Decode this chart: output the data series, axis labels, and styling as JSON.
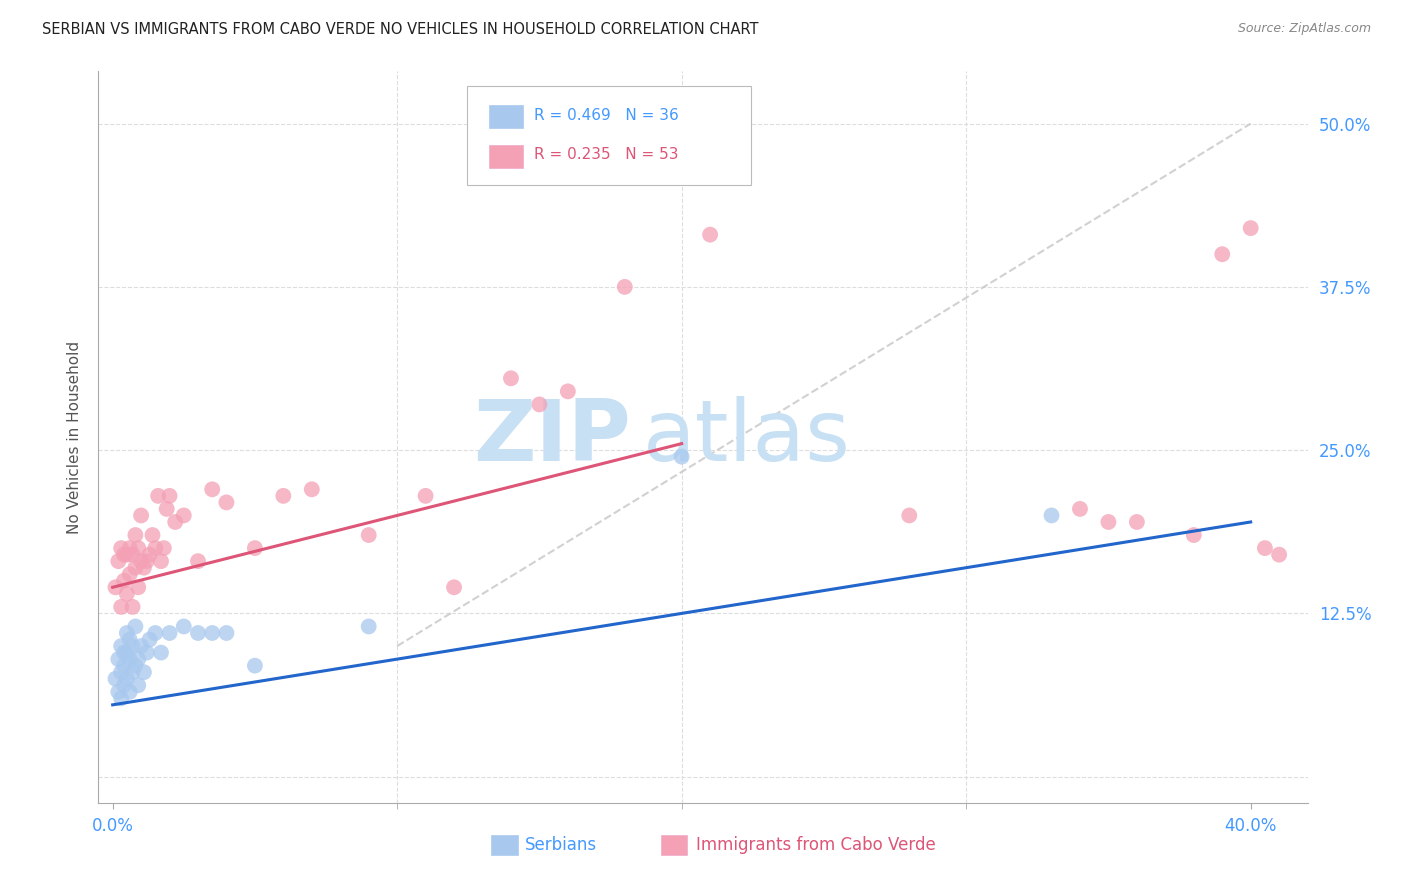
{
  "title": "SERBIAN VS IMMIGRANTS FROM CABO VERDE NO VEHICLES IN HOUSEHOLD CORRELATION CHART",
  "source": "Source: ZipAtlas.com",
  "ylabel": "No Vehicles in Household",
  "ytick_values": [
    0.0,
    0.125,
    0.25,
    0.375,
    0.5
  ],
  "ytick_labels_right": [
    "",
    "12.5%",
    "25.0%",
    "37.5%",
    "50.0%"
  ],
  "xtick_values": [
    0.0,
    0.1,
    0.2,
    0.3,
    0.4
  ],
  "xlim": [
    -0.005,
    0.42
  ],
  "ylim": [
    -0.02,
    0.54
  ],
  "blue_color": "#A8C8EE",
  "pink_color": "#F4A0B5",
  "line_blue": "#2266CC",
  "line_pink": "#DD5577",
  "line_gray": "#CCCCCC",
  "tick_color": "#4499FF",
  "grid_color": "#DDDDDD",
  "watermark_color": "#C8E0F4",
  "background_color": "#FFFFFF",
  "blue_trendline_x": [
    0.0,
    0.4
  ],
  "blue_trendline_y": [
    0.055,
    0.195
  ],
  "pink_trendline_x": [
    0.0,
    0.2
  ],
  "pink_trendline_y": [
    0.145,
    0.255
  ],
  "gray_line_x": [
    0.1,
    0.4
  ],
  "gray_line_y": [
    0.1,
    0.5
  ],
  "serbian_x": [
    0.001,
    0.002,
    0.002,
    0.003,
    0.003,
    0.003,
    0.004,
    0.004,
    0.004,
    0.005,
    0.005,
    0.005,
    0.006,
    0.006,
    0.006,
    0.007,
    0.007,
    0.008,
    0.008,
    0.009,
    0.009,
    0.01,
    0.011,
    0.012,
    0.013,
    0.015,
    0.017,
    0.02,
    0.025,
    0.03,
    0.035,
    0.04,
    0.05,
    0.09,
    0.2,
    0.33
  ],
  "serbian_y": [
    0.075,
    0.065,
    0.09,
    0.08,
    0.1,
    0.06,
    0.085,
    0.07,
    0.095,
    0.075,
    0.095,
    0.11,
    0.065,
    0.09,
    0.105,
    0.08,
    0.1,
    0.085,
    0.115,
    0.09,
    0.07,
    0.1,
    0.08,
    0.095,
    0.105,
    0.11,
    0.095,
    0.11,
    0.115,
    0.11,
    0.11,
    0.11,
    0.085,
    0.115,
    0.245,
    0.2
  ],
  "cabo_verde_x": [
    0.001,
    0.002,
    0.003,
    0.003,
    0.004,
    0.004,
    0.005,
    0.005,
    0.006,
    0.006,
    0.007,
    0.007,
    0.008,
    0.008,
    0.009,
    0.009,
    0.01,
    0.01,
    0.011,
    0.012,
    0.013,
    0.014,
    0.015,
    0.016,
    0.017,
    0.018,
    0.019,
    0.02,
    0.022,
    0.025,
    0.03,
    0.035,
    0.04,
    0.05,
    0.06,
    0.07,
    0.09,
    0.11,
    0.12,
    0.14,
    0.15,
    0.16,
    0.18,
    0.21,
    0.28,
    0.34,
    0.35,
    0.36,
    0.38,
    0.39,
    0.4,
    0.405,
    0.41
  ],
  "cabo_verde_y": [
    0.145,
    0.165,
    0.13,
    0.175,
    0.15,
    0.17,
    0.14,
    0.17,
    0.155,
    0.175,
    0.13,
    0.17,
    0.16,
    0.185,
    0.145,
    0.175,
    0.165,
    0.2,
    0.16,
    0.165,
    0.17,
    0.185,
    0.175,
    0.215,
    0.165,
    0.175,
    0.205,
    0.215,
    0.195,
    0.2,
    0.165,
    0.22,
    0.21,
    0.175,
    0.215,
    0.22,
    0.185,
    0.215,
    0.145,
    0.305,
    0.285,
    0.295,
    0.375,
    0.415,
    0.2,
    0.205,
    0.195,
    0.195,
    0.185,
    0.4,
    0.42,
    0.175,
    0.17
  ]
}
